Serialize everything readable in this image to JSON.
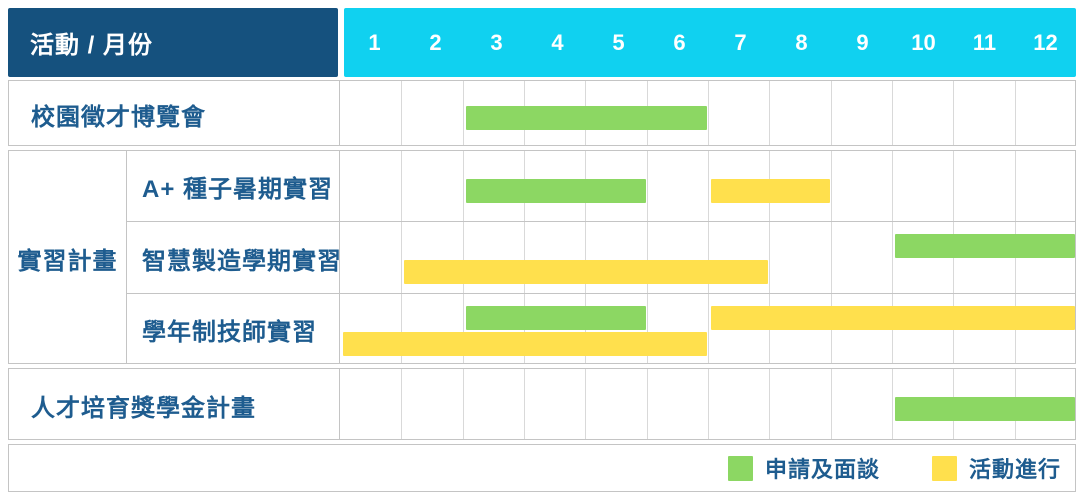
{
  "header": {
    "title": "活動 / 月份"
  },
  "colors": {
    "header_navy": "#15517E",
    "month_cyan": "#10D1F0",
    "apply_green": "#8CD763",
    "ongoing_yellow": "#FFE04D",
    "label_text": "#1E5C8F"
  },
  "legend": {
    "apply_label": "申請及面談",
    "ongoing_label": "活動進行"
  },
  "chart_data": {
    "type": "gantt",
    "title": "活動 / 月份",
    "x_unit": "month",
    "x_range": [
      1,
      12
    ],
    "months": [
      "1",
      "2",
      "3",
      "4",
      "5",
      "6",
      "7",
      "8",
      "9",
      "10",
      "11",
      "12"
    ],
    "legend": [
      {
        "key": "apply",
        "label": "申請及面談",
        "color": "#8CD763"
      },
      {
        "key": "ongoing",
        "label": "活動進行",
        "color": "#FFE04D"
      }
    ],
    "rows": [
      {
        "group": null,
        "label": "校園徵才博覽會",
        "lines": [
          [
            {
              "type": "apply",
              "start_month": 3,
              "end_month": 7
            }
          ]
        ]
      },
      {
        "group": "實習計畫",
        "label": "A+ 種子暑期實習",
        "lines": [
          [
            {
              "type": "apply",
              "start_month": 3,
              "end_month": 6
            },
            {
              "type": "ongoing",
              "start_month": 7,
              "end_month": 9
            }
          ]
        ]
      },
      {
        "group": "實習計畫",
        "label": "智慧製造學期實習",
        "lines": [
          [
            {
              "type": "apply",
              "start_month": 10,
              "end_month": 13
            }
          ],
          [
            {
              "type": "ongoing",
              "start_month": 2,
              "end_month": 8
            }
          ]
        ]
      },
      {
        "group": "實習計畫",
        "label": "學年制技師實習",
        "lines": [
          [
            {
              "type": "apply",
              "start_month": 3,
              "end_month": 6
            },
            {
              "type": "ongoing",
              "start_month": 7,
              "end_month": 13
            }
          ],
          [
            {
              "type": "ongoing",
              "start_month": 1,
              "end_month": 7
            }
          ]
        ]
      },
      {
        "group": null,
        "label": "人才培育獎學金計畫",
        "lines": [
          [
            {
              "type": "apply",
              "start_month": 10,
              "end_month": 13
            }
          ]
        ]
      }
    ]
  }
}
